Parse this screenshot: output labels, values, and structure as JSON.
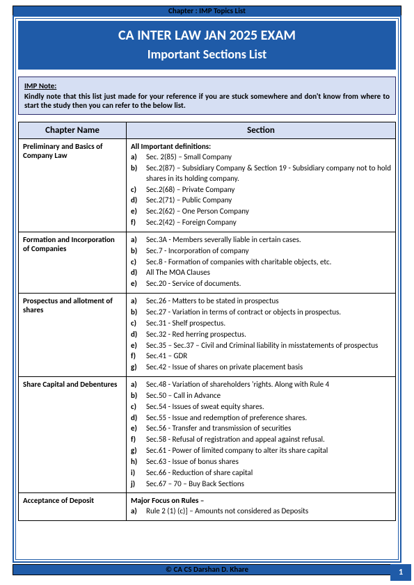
{
  "topBanner": "Chapter : IMP Topics List",
  "title1": "CA INTER LAW JAN 2025 EXAM",
  "title2": "Important Sections List",
  "note": {
    "heading": "IMP Note:",
    "body": "Kindly note that this list just made for your reference if you are stuck somewhere and don't know from where to start the study then you can refer to the below list."
  },
  "headers": {
    "col1": "Chapter Name",
    "col2": "Section"
  },
  "rows": [
    {
      "chapter": "Preliminary and Basics of Company Law",
      "intro": "All Important definitions:",
      "items": [
        "Sec. 2(85) – Small Company",
        "Sec.2(87) – Subsidiary Company & Section 19 - Subsidiary company not to hold shares in its holding company.",
        "Sec.2(68) – Private Company",
        "Sec.2(71) – Public Company",
        "Sec.2(62) – One Person Company",
        "Sec.2(42) – Foreign Company"
      ]
    },
    {
      "chapter": "Formation and Incorporation of Companies",
      "items": [
        "Sec.3A - Members severally liable in certain cases.",
        "Sec.7 - Incorporation of company",
        "Sec.8 - Formation of companies with charitable objects, etc.",
        "All The MOA Clauses",
        "Sec.20 - Service of documents."
      ]
    },
    {
      "chapter": "Prospectus and allotment of shares",
      "items": [
        "Sec.26 - Matters to be stated in prospectus",
        "Sec.27 - Variation in terms of contract or objects in prospectus.",
        "Sec.31 - Shelf prospectus.",
        "Sec.32 - Red herring prospectus.",
        "Sec.35 – Sec.37 – Civil and Criminal liability in misstatements of prospectus",
        "Sec.41 – GDR",
        "Sec.42 - Issue of shares on private placement basis"
      ]
    },
    {
      "chapter": "Share Capital and Debentures",
      "items": [
        "Sec.48 - Variation of shareholders 'rights. Along with Rule 4",
        "Sec.50 – Call in Advance",
        "Sec.54 - Issues of sweat equity shares.",
        "Sec.55 - Issue and redemption of preference shares.",
        "Sec.56 - Transfer and transmission of securities",
        "Sec.58 - Refusal of registration and appeal against refusal.",
        "Sec.61 - Power of limited company to alter its share capital",
        "Sec.63 - Issue of bonus shares",
        "Sec.66 - Reduction of share capital",
        "Sec.67 – 70 – Buy Back Sections"
      ]
    },
    {
      "chapter": "Acceptance of Deposit",
      "intro": "Major Focus on Rules –",
      "items": [
        "Rule 2 (1) (c)] – Amounts not considered as Deposits"
      ]
    }
  ],
  "footer": "© CA CS Darshan D. Khare",
  "pageNum": "1",
  "labels": [
    "a)",
    "b)",
    "c)",
    "d)",
    "e)",
    "f)",
    "g)",
    "h)",
    "i)",
    "j)"
  ]
}
